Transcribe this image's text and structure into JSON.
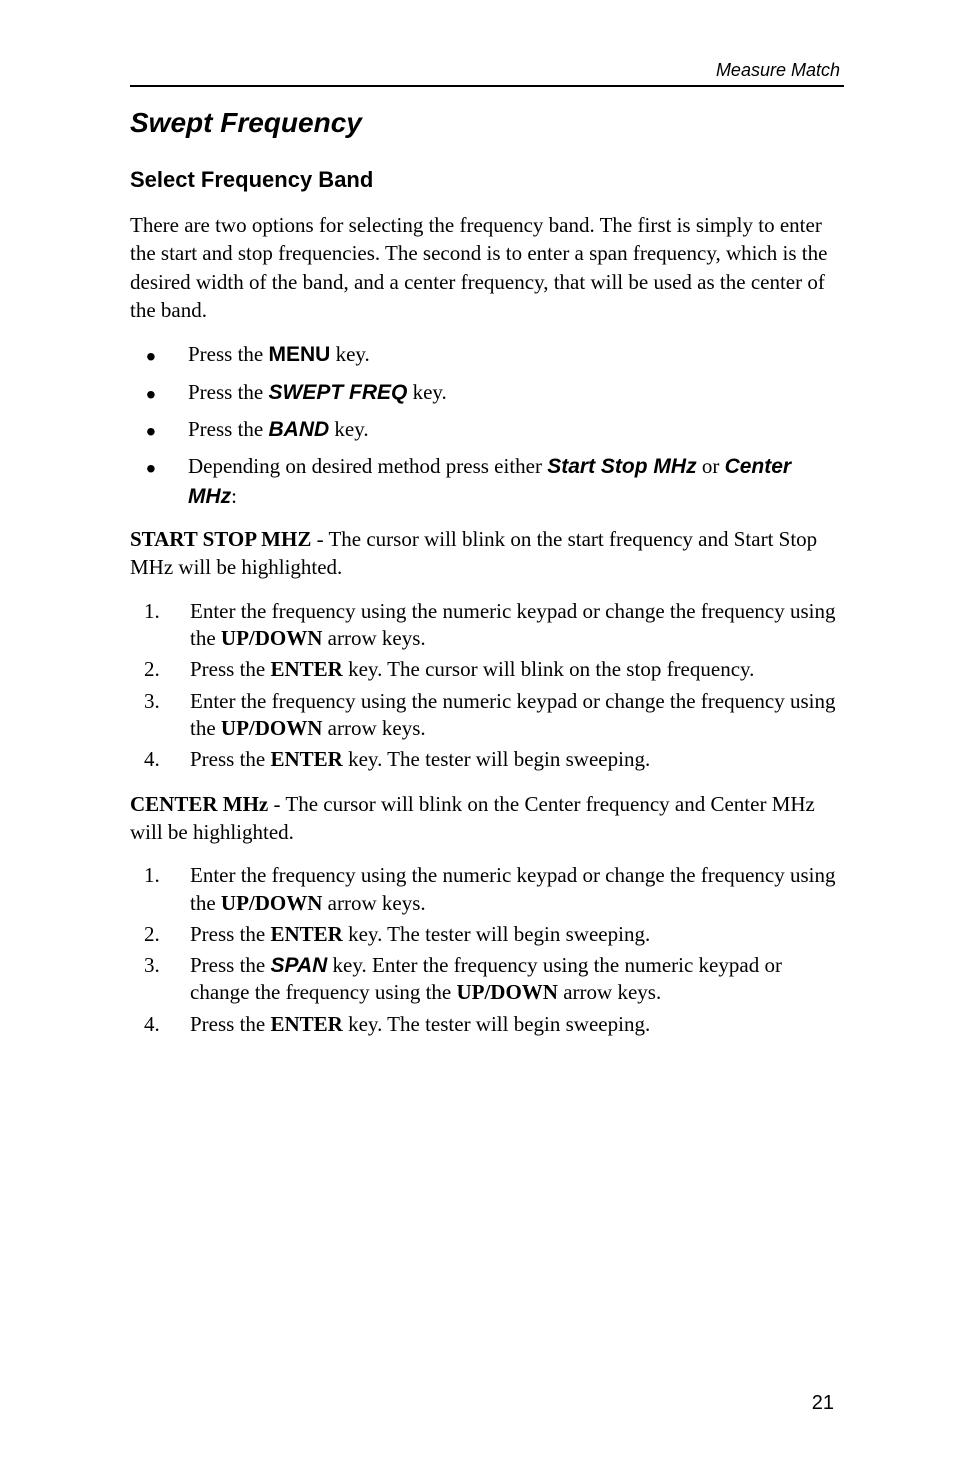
{
  "header": {
    "right": "Measure Match"
  },
  "h1": "Swept Frequency",
  "h2": "Select Frequency Band",
  "intro": "There are two options for selecting the frequency band. The first is simply to enter the start and stop frequencies. The second is to enter a span frequency, which is the desired width of the band, and a center frequency, that will be used as the center of the band.",
  "bullets": {
    "b1a": "Press the ",
    "b1b": "MENU",
    "b1c": " key.",
    "b2a": "Press the ",
    "b2b": "SWEPT FREQ",
    "b2c": " key.",
    "b3a": "Press the ",
    "b3b": "BAND",
    "b3c": " key.",
    "b4a": "Depending on desired method press either ",
    "b4b": "Start Stop MHz",
    "b4c": " or ",
    "b4d": "Center MHz",
    "b4e": ":"
  },
  "p_start_a": "START STOP MHZ",
  "p_start_b": " - The cursor will blink on the start frequency and Start Stop MHz will be highlighted.",
  "steps1": {
    "s1a": "Enter the frequency using the numeric keypad or change the frequency using the ",
    "s1b": "UP/DOWN",
    "s1c": " arrow keys.",
    "s2a": "Press the ",
    "s2b": "ENTER",
    "s2c": " key. The cursor will blink on the stop frequency.",
    "s3a": "Enter the frequency using the numeric keypad or change the frequency using the ",
    "s3b": "UP/DOWN",
    "s3c": " arrow keys.",
    "s4a": "Press the ",
    "s4b": "ENTER",
    "s4c": " key. The tester will begin sweeping."
  },
  "p_center_a": "CENTER MHz",
  "p_center_b": " - The cursor will blink on the Center frequency and Center MHz will be highlighted.",
  "steps2": {
    "s1a": "Enter the frequency using the numeric keypad or change the frequency using the ",
    "s1b": "UP/DOWN",
    "s1c": " arrow keys.",
    "s2a": "Press the ",
    "s2b": "ENTER",
    "s2c": " key. The tester will begin sweeping.",
    "s3a": "Press the ",
    "s3b": "SPAN",
    "s3c": " key. Enter the frequency using the numeric keypad or change the frequency using the ",
    "s3d": "UP/DOWN",
    "s3e": " arrow keys.",
    "s4a": "Press the ",
    "s4b": "ENTER",
    "s4c": " key. The tester will begin sweeping."
  },
  "pagenum": "21"
}
